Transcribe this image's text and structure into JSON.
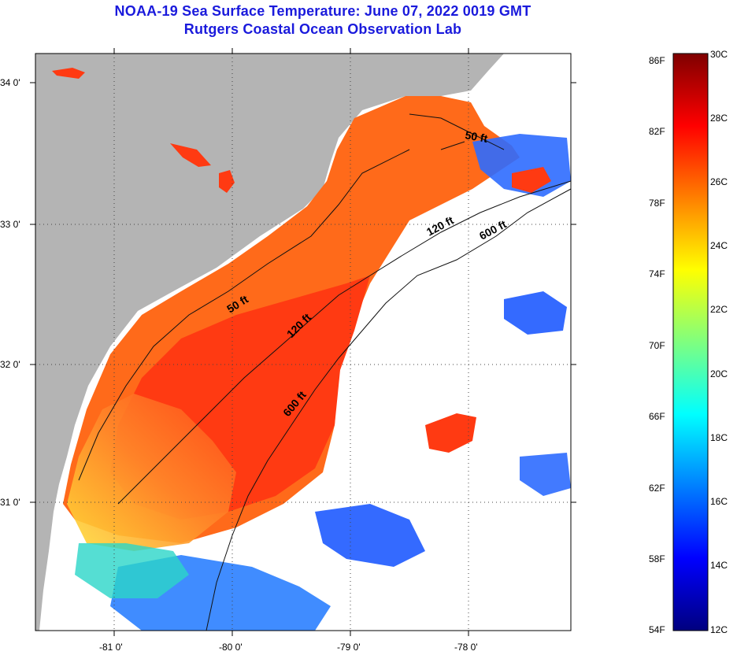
{
  "title": "NOAA-19 Sea Surface Temperature:  June 07, 2022 0019 GMT",
  "subtitle": "Rutgers Coastal Ocean Observation Lab",
  "map": {
    "lat_ticks": [
      "34 0'",
      "33 0'",
      "32 0'",
      "31 0'"
    ],
    "lon_ticks": [
      "-81 0'",
      "-80 0'",
      "-79 0'",
      "-78 0'"
    ],
    "isobaths": [
      "50 ft",
      "120 ft",
      "600 ft"
    ],
    "colors": {
      "land": "#b4b4b4",
      "nodata": "#ffffff",
      "warm": "#ff3a10",
      "mid": "#ff7a18",
      "cool": "#ffd21e",
      "cold": "#1e78ff"
    }
  },
  "colorbar": {
    "fahrenheit": [
      "86F",
      "82F",
      "78F",
      "74F",
      "70F",
      "66F",
      "62F",
      "58F",
      "54F"
    ],
    "celsius": [
      "30C",
      "28C",
      "26C",
      "24C",
      "22C",
      "20C",
      "18C",
      "16C",
      "14C",
      "12C"
    ],
    "colors": [
      "#00007f",
      "#0000ff",
      "#007fff",
      "#00ffff",
      "#7fff7f",
      "#ffff00",
      "#ff7f00",
      "#ff0000",
      "#7f0000"
    ]
  }
}
